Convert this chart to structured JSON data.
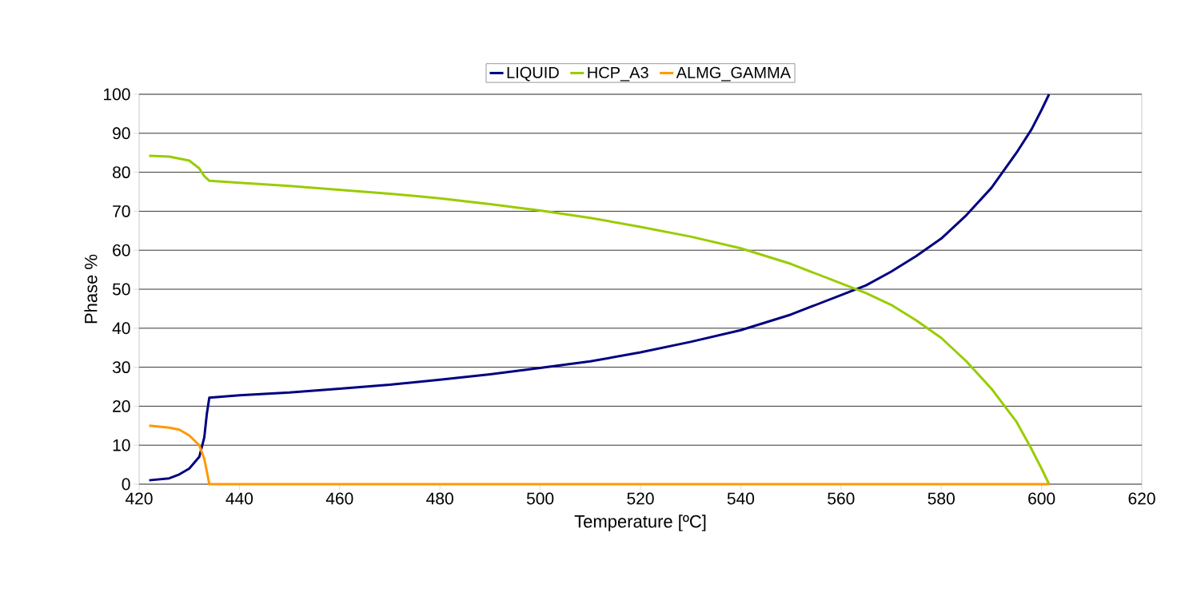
{
  "chart_data": {
    "type": "line",
    "xlabel": "Temperature [ºC]",
    "ylabel": "Phase %",
    "xlim": [
      420,
      620
    ],
    "xticks": [
      420,
      440,
      460,
      480,
      500,
      520,
      540,
      560,
      580,
      600,
      620
    ],
    "ylim": [
      0,
      100
    ],
    "yticks": [
      0,
      10,
      20,
      30,
      40,
      50,
      60,
      70,
      80,
      90,
      100
    ],
    "grid": "y",
    "legend": "top",
    "marker": "none",
    "line_style": "solid",
    "series": [
      {
        "name": "LIQUID",
        "color": "#000080",
        "x": [
          422,
          426,
          428,
          430,
          432,
          433,
          433.5,
          434,
          440,
          450,
          460,
          470,
          480,
          490,
          500,
          510,
          520,
          530,
          540,
          550,
          560,
          565,
          570,
          575,
          580,
          585,
          590,
          595,
          598,
          600,
          601.5
        ],
        "values": [
          1,
          1.5,
          2.5,
          4,
          7,
          12,
          18,
          22.2,
          22.8,
          23.5,
          24.5,
          25.5,
          26.8,
          28.2,
          29.8,
          31.5,
          33.8,
          36.5,
          39.5,
          43.5,
          48.5,
          51,
          54.5,
          58.5,
          63,
          69,
          76,
          85,
          91,
          96,
          100
        ]
      },
      {
        "name": "HCP_A3",
        "color": "#99cc00",
        "x": [
          422,
          426,
          430,
          432,
          433,
          434,
          440,
          450,
          460,
          470,
          480,
          490,
          500,
          510,
          520,
          530,
          540,
          550,
          560,
          565,
          570,
          575,
          580,
          585,
          590,
          595,
          598,
          600,
          601.5
        ],
        "values": [
          84.2,
          84,
          83,
          81,
          79,
          77.8,
          77.3,
          76.5,
          75.5,
          74.5,
          73.3,
          71.8,
          70.2,
          68.3,
          66,
          63.5,
          60.5,
          56.5,
          51.5,
          49,
          46,
          42,
          37.5,
          31.5,
          24.5,
          16,
          9,
          4,
          0
        ]
      },
      {
        "name": "ALMG_GAMMA",
        "color": "#ff9900",
        "x": [
          422,
          426,
          428,
          430,
          432,
          433,
          433.7,
          434,
          601.5
        ],
        "values": [
          15,
          14.5,
          14,
          12.5,
          10,
          6.5,
          2,
          0,
          0
        ]
      }
    ]
  }
}
